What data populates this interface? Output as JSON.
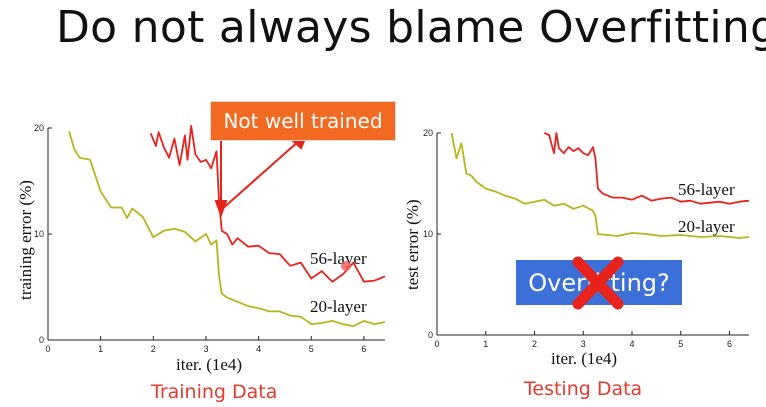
{
  "slide": {
    "title": "Do not always blame Overfitting",
    "callout_text": "Not well trained",
    "overfitting_label": "Overfitting?",
    "training_caption": "Training Data",
    "testing_caption": "Testing Data"
  },
  "chart_data": [
    {
      "type": "line",
      "xlabel": "iter. (1e4)",
      "ylabel": "training error (%)",
      "xlim": [
        0,
        6.4
      ],
      "ylim": [
        0,
        20
      ],
      "xticks": [
        0,
        1,
        2,
        3,
        4,
        5,
        6
      ],
      "yticks": [
        0,
        10,
        20
      ],
      "grid": false,
      "series": [
        {
          "name": "56-layer",
          "color": "#e8231b",
          "x": [
            1.95,
            2.05,
            2.1,
            2.2,
            2.3,
            2.4,
            2.5,
            2.6,
            2.65,
            2.72,
            2.8,
            2.9,
            3.0,
            3.1,
            3.2,
            3.25,
            3.3,
            3.4,
            3.5,
            3.6,
            3.8,
            4.0,
            4.2,
            4.4,
            4.6,
            4.8,
            5.0,
            5.2,
            5.4,
            5.6,
            5.8,
            6.0,
            6.2,
            6.4
          ],
          "y": [
            19.5,
            18.3,
            19.6,
            18.2,
            17.2,
            19.0,
            16.5,
            19.3,
            17.0,
            20.2,
            17.5,
            16.8,
            17.0,
            16.2,
            17.8,
            13.0,
            10.3,
            10.0,
            9.0,
            9.6,
            8.8,
            8.9,
            8.2,
            8.1,
            7.0,
            7.3,
            5.8,
            6.5,
            5.5,
            6.2,
            7.3,
            5.5,
            5.6,
            6.0
          ]
        },
        {
          "name": "20-layer",
          "color": "#b8b51a",
          "x": [
            0.4,
            0.5,
            0.6,
            0.8,
            0.9,
            1.0,
            1.2,
            1.4,
            1.5,
            1.6,
            1.8,
            2.0,
            2.2,
            2.4,
            2.6,
            2.8,
            3.0,
            3.1,
            3.2,
            3.25,
            3.3,
            3.4,
            3.6,
            3.8,
            4.0,
            4.2,
            4.4,
            4.6,
            4.8,
            5.0,
            5.2,
            5.4,
            5.6,
            5.8,
            6.0,
            6.2,
            6.4
          ],
          "y": [
            19.7,
            18.0,
            17.2,
            17.0,
            15.5,
            14.0,
            12.5,
            12.5,
            11.5,
            12.4,
            11.6,
            9.7,
            10.3,
            10.5,
            10.2,
            9.3,
            10.0,
            9.0,
            9.4,
            6.0,
            4.4,
            4.0,
            3.6,
            3.2,
            3.0,
            2.7,
            2.7,
            2.3,
            2.2,
            1.5,
            1.6,
            1.8,
            1.5,
            1.3,
            1.8,
            1.5,
            1.7
          ]
        }
      ]
    },
    {
      "type": "line",
      "xlabel": "iter. (1e4)",
      "ylabel": "test error (%)",
      "xlim": [
        0,
        6.4
      ],
      "ylim": [
        0,
        20
      ],
      "xticks": [
        0,
        1,
        2,
        3,
        4,
        5,
        6
      ],
      "yticks": [
        0,
        10,
        20
      ],
      "grid": false,
      "series": [
        {
          "name": "56-layer",
          "color": "#e8231b",
          "x": [
            2.2,
            2.3,
            2.4,
            2.45,
            2.5,
            2.6,
            2.7,
            2.8,
            2.9,
            3.0,
            3.1,
            3.2,
            3.25,
            3.3,
            3.4,
            3.6,
            3.8,
            4.0,
            4.2,
            4.4,
            4.6,
            4.8,
            5.0,
            5.2,
            5.4,
            5.6,
            5.8,
            6.0,
            6.2,
            6.4
          ],
          "y": [
            20.0,
            19.8,
            18.0,
            20.0,
            18.5,
            18.0,
            18.6,
            18.2,
            18.5,
            18.0,
            17.8,
            18.6,
            17.5,
            14.5,
            14.0,
            13.6,
            13.6,
            13.4,
            13.8,
            13.3,
            13.5,
            13.6,
            13.2,
            13.3,
            13.0,
            13.1,
            13.2,
            13.0,
            13.2,
            13.3
          ]
        },
        {
          "name": "20-layer",
          "color": "#b8b51a",
          "x": [
            0.3,
            0.4,
            0.5,
            0.6,
            0.7,
            0.8,
            1.0,
            1.2,
            1.4,
            1.6,
            1.8,
            2.0,
            2.2,
            2.4,
            2.6,
            2.8,
            3.0,
            3.2,
            3.25,
            3.3,
            3.5,
            3.7,
            4.0,
            4.3,
            4.6,
            5.0,
            5.4,
            5.8,
            6.2,
            6.4
          ],
          "y": [
            20.0,
            17.5,
            19.0,
            16.0,
            15.8,
            15.2,
            14.5,
            14.2,
            13.8,
            13.5,
            13.0,
            13.2,
            13.4,
            12.8,
            13.0,
            12.5,
            12.8,
            12.3,
            11.8,
            10.0,
            9.9,
            9.8,
            10.1,
            10.0,
            9.8,
            9.9,
            9.7,
            9.8,
            9.6,
            9.7
          ]
        }
      ]
    }
  ]
}
